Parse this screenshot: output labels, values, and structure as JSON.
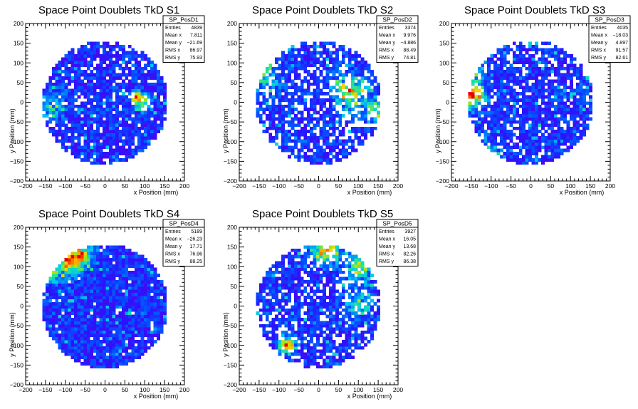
{
  "chart_data": [
    {
      "type": "heatmap",
      "title": "Space Point Doublets TkD S1",
      "xlabel": "x Position (mm)",
      "ylabel": "y Position (mm)",
      "xlim": [
        -200,
        200
      ],
      "ylim": [
        -200,
        200
      ],
      "xticks": [
        "−200",
        "−150",
        "−100",
        "−50",
        "0",
        "50",
        "100",
        "150",
        "200"
      ],
      "yticks": [
        "−200",
        "−150",
        "−100",
        "−50",
        "0",
        "50",
        "100",
        "150",
        "200"
      ],
      "stats": {
        "name": "SP_PosD1",
        "rows": [
          {
            "label": "Entries",
            "value": "4839"
          },
          {
            "label": "Mean x",
            "value": "7.811"
          },
          {
            "label": "Mean y",
            "value": "−21.69"
          },
          {
            "label": "RMS x",
            "value": "86.97"
          },
          {
            "label": "RMS y",
            "value": "75.93"
          }
        ]
      },
      "disk_radius": 158,
      "bin_width": 8,
      "empty_fraction": 0.15,
      "hotspots": [
        {
          "x": 78,
          "y": 14,
          "r": 10,
          "boost": 1.0
        },
        {
          "x": 98,
          "y": 0,
          "r": 14,
          "boost": 0.5
        },
        {
          "x": -140,
          "y": -10,
          "r": 25,
          "boost": 0.35
        }
      ]
    },
    {
      "type": "heatmap",
      "title": "Space Point Doublets TkD S2",
      "xlabel": "x Position (mm)",
      "ylabel": "y Position (mm)",
      "xlim": [
        -200,
        200
      ],
      "ylim": [
        -200,
        200
      ],
      "xticks": [
        "−200",
        "−150",
        "−100",
        "−50",
        "0",
        "50",
        "100",
        "150",
        "200"
      ],
      "yticks": [
        "−200",
        "−150",
        "−100",
        "−50",
        "0",
        "50",
        "100",
        "150",
        "200"
      ],
      "stats": {
        "name": "SP_PosD2",
        "rows": [
          {
            "label": "Entries",
            "value": "3374"
          },
          {
            "label": "Mean x",
            "value": "9.976"
          },
          {
            "label": "Mean y",
            "value": "−4.886"
          },
          {
            "label": "RMS x",
            "value": "88.49"
          },
          {
            "label": "RMS y",
            "value": "74.81"
          }
        ]
      },
      "disk_radius": 158,
      "bin_width": 8,
      "empty_fraction": 0.3,
      "hotspots": [
        {
          "x": 80,
          "y": 30,
          "r": 30,
          "boost": 0.6
        },
        {
          "x": 150,
          "y": -20,
          "r": 20,
          "boost": 0.55
        },
        {
          "x": -130,
          "y": 60,
          "r": 25,
          "boost": 0.35
        }
      ]
    },
    {
      "type": "heatmap",
      "title": "Space Point Doublets TkD S3",
      "xlabel": "x Position (mm)",
      "ylabel": "y Position (mm)",
      "xlim": [
        -200,
        200
      ],
      "ylim": [
        -200,
        200
      ],
      "xticks": [
        "−200",
        "−150",
        "−100",
        "−50",
        "0",
        "50",
        "100",
        "150",
        "200"
      ],
      "yticks": [
        "−200",
        "−150",
        "−100",
        "−50",
        "0",
        "50",
        "100",
        "150",
        "200"
      ],
      "stats": {
        "name": "SP_PosD3",
        "rows": [
          {
            "label": "Entries",
            "value": "4035"
          },
          {
            "label": "Mean x",
            "value": "−18.03"
          },
          {
            "label": "Mean y",
            "value": "4.897"
          },
          {
            "label": "RMS x",
            "value": "91.57"
          },
          {
            "label": "RMS y",
            "value": "82.61"
          }
        ]
      },
      "disk_radius": 158,
      "bin_width": 8,
      "empty_fraction": 0.18,
      "hotspots": [
        {
          "x": -150,
          "y": 20,
          "r": 22,
          "boost": 0.9
        },
        {
          "x": -140,
          "y": 80,
          "r": 20,
          "boost": 0.4
        },
        {
          "x": -100,
          "y": -130,
          "r": 20,
          "boost": 0.4
        }
      ]
    },
    {
      "type": "heatmap",
      "title": "Space Point Doublets TkD S4",
      "xlabel": "x Position (mm)",
      "ylabel": "y Position (mm)",
      "xlim": [
        -200,
        200
      ],
      "ylim": [
        -200,
        200
      ],
      "xticks": [
        "−200",
        "−150",
        "−100",
        "−50",
        "0",
        "50",
        "100",
        "150",
        "200"
      ],
      "yticks": [
        "−200",
        "−150",
        "−100",
        "−50",
        "0",
        "50",
        "100",
        "150",
        "200"
      ],
      "stats": {
        "name": "SP_PosD4",
        "rows": [
          {
            "label": "Entries",
            "value": "5189"
          },
          {
            "label": "Mean x",
            "value": "−26.23"
          },
          {
            "label": "Mean y",
            "value": "17.71"
          },
          {
            "label": "RMS x",
            "value": "76.96"
          },
          {
            "label": "RMS y",
            "value": "88.25"
          }
        ]
      },
      "disk_radius": 158,
      "bin_width": 8,
      "empty_fraction": 0.04,
      "hotspots": [
        {
          "x": -90,
          "y": 115,
          "r": 25,
          "boost": 0.75
        },
        {
          "x": -60,
          "y": 135,
          "r": 20,
          "boost": 0.5
        },
        {
          "x": -130,
          "y": 80,
          "r": 15,
          "boost": 0.35
        }
      ]
    },
    {
      "type": "heatmap",
      "title": "Space Point Doublets TkD S5",
      "xlabel": "x Position (mm)",
      "ylabel": "y Position (mm)",
      "xlim": [
        -200,
        200
      ],
      "ylim": [
        -200,
        200
      ],
      "xticks": [
        "−200",
        "−150",
        "−100",
        "−50",
        "0",
        "50",
        "100",
        "150",
        "200"
      ],
      "yticks": [
        "−200",
        "−150",
        "−100",
        "−50",
        "0",
        "50",
        "100",
        "150",
        "200"
      ],
      "stats": {
        "name": "SP_PosD5",
        "rows": [
          {
            "label": "Entries",
            "value": "3927"
          },
          {
            "label": "Mean x",
            "value": "16.05"
          },
          {
            "label": "Mean y",
            "value": "13.68"
          },
          {
            "label": "RMS x",
            "value": "82.26"
          },
          {
            "label": "RMS y",
            "value": "86.38"
          }
        ]
      },
      "disk_radius": 158,
      "bin_width": 8,
      "empty_fraction": 0.25,
      "hotspots": [
        {
          "x": 20,
          "y": 140,
          "r": 20,
          "boost": 0.9
        },
        {
          "x": 100,
          "y": 100,
          "r": 25,
          "boost": 0.55
        },
        {
          "x": -80,
          "y": -100,
          "r": 15,
          "boost": 0.85
        },
        {
          "x": 100,
          "y": 0,
          "r": 25,
          "boost": 0.4
        }
      ]
    }
  ]
}
